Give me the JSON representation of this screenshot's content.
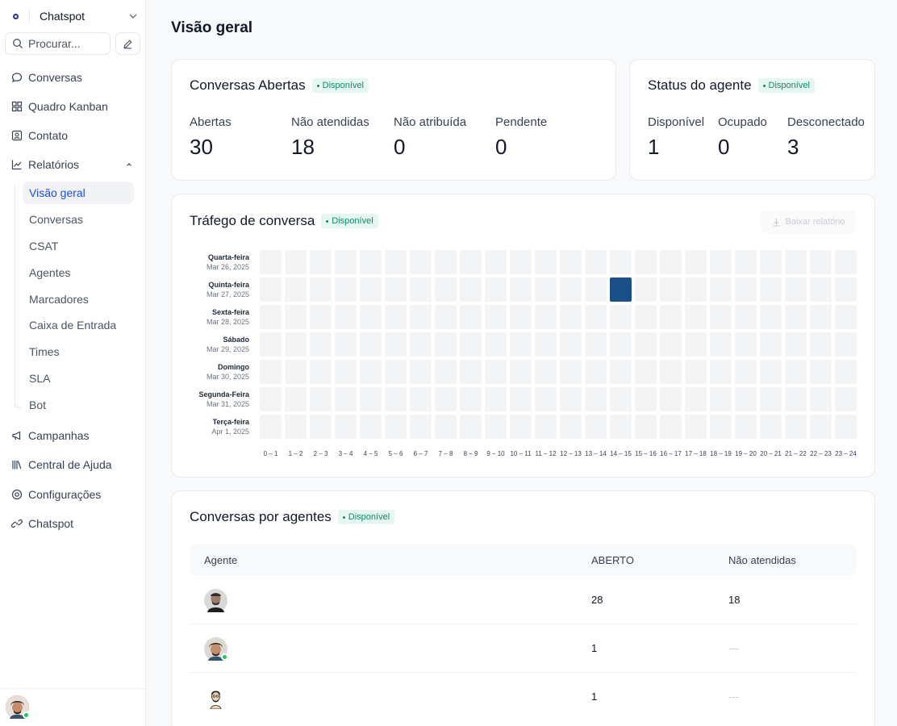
{
  "sidebar": {
    "brand": "Chatspot",
    "search_placeholder": "Procurar...",
    "nav": [
      {
        "label": "Conversas",
        "icon": "chat-bubble-icon"
      },
      {
        "label": "Quadro Kanban",
        "icon": "kanban-grid-icon"
      },
      {
        "label": "Contato",
        "icon": "contact-card-icon"
      },
      {
        "label": "Relatórios",
        "icon": "line-chart-icon"
      }
    ],
    "reports_sub": [
      "Visão geral",
      "Conversas",
      "CSAT",
      "Agentes",
      "Marcadores",
      "Caixa de Entrada",
      "Times",
      "SLA",
      "Bot"
    ],
    "nav_bottom": [
      {
        "label": "Campanhas",
        "icon": "megaphone-icon"
      },
      {
        "label": "Central de Ajuda",
        "icon": "library-icon"
      },
      {
        "label": "Configurações",
        "icon": "settings-gear-icon"
      },
      {
        "label": "Chatspot",
        "icon": "link-icon"
      }
    ]
  },
  "main": {
    "page_title": "Visão geral",
    "badge": "Disponível",
    "open_conversations": {
      "title": "Conversas Abertas",
      "metrics": [
        {
          "label": "Abertas",
          "value": "30"
        },
        {
          "label": "Não atendidas",
          "value": "18"
        },
        {
          "label": "Não atribuída",
          "value": "0"
        },
        {
          "label": "Pendente",
          "value": "0"
        }
      ]
    },
    "agent_status": {
      "title": "Status do agente",
      "metrics": [
        {
          "label": "Disponível",
          "value": "1"
        },
        {
          "label": "Ocupado",
          "value": "0"
        },
        {
          "label": "Desconectado",
          "value": "3"
        }
      ]
    },
    "traffic": {
      "title": "Tráfego de conversa",
      "download_label": "Baixar relatório",
      "days": [
        {
          "name": "Quarta-feira",
          "date": "Mar 26, 2025"
        },
        {
          "name": "Quinta-feira",
          "date": "Mar 27, 2025"
        },
        {
          "name": "Sexta-feira",
          "date": "Mar 28, 2025"
        },
        {
          "name": "Sábado",
          "date": "Mar 29, 2025"
        },
        {
          "name": "Domingo",
          "date": "Mar 30, 2025"
        },
        {
          "name": "Segunda-Feira",
          "date": "Mar 31, 2025"
        },
        {
          "name": "Terça-feira",
          "date": "Apr 1, 2025"
        }
      ],
      "hours": [
        "0 – 1",
        "1 – 2",
        "2 – 3",
        "3 – 4",
        "4 – 5",
        "5 – 6",
        "6 – 7",
        "7 – 8",
        "8 – 9",
        "9 – 10",
        "10 – 11",
        "11 – 12",
        "12 – 13",
        "13 – 14",
        "14 – 15",
        "15 – 16",
        "16 – 17",
        "17 – 18",
        "18 – 19",
        "19 – 20",
        "20 – 21",
        "21 – 22",
        "22 – 23",
        "23 – 24"
      ],
      "active_cells": [
        {
          "day": 1,
          "hour": 14
        }
      ],
      "colors": {
        "empty": "#f3f4f6",
        "active": "#1b4f88"
      }
    },
    "agents_table": {
      "title": "Conversas por agentes",
      "columns": [
        "Agente",
        "ABERTO",
        "Não atendidas"
      ],
      "rows": [
        {
          "open": "28",
          "unattended": "18"
        },
        {
          "open": "1",
          "unattended": "---"
        },
        {
          "open": "1",
          "unattended": "---"
        }
      ]
    }
  },
  "colors": {
    "accent": "#1d4ed8",
    "badge_bg": "#e6f6f1",
    "badge_text": "#0f8a6a",
    "online": "#22c55e"
  }
}
